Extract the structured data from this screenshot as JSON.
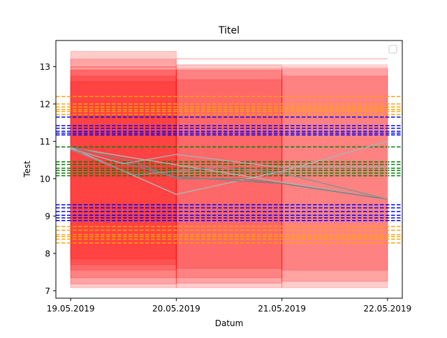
{
  "chart_data": {
    "type": "line",
    "title": "Titel",
    "xlabel": "Datum",
    "ylabel": "Test",
    "x_categories": [
      "19.05.2019",
      "20.05.2019",
      "21.05.2019",
      "22.05.2019"
    ],
    "xlim": [
      -0.14,
      3.14
    ],
    "ylim": [
      6.8,
      13.7
    ],
    "y_ticks": [
      7,
      8,
      9,
      10,
      11,
      12,
      13
    ],
    "legend": {
      "placement": "top-right",
      "entries": []
    },
    "bands": [
      {
        "x0": 0,
        "x1": 1,
        "y0": 7.08,
        "y1": 13.41,
        "color": "#ff0000",
        "opacity": 0.2
      },
      {
        "x0": 0,
        "x1": 1,
        "y0": 7.18,
        "y1": 13.2,
        "color": "#ff0000",
        "opacity": 0.2
      },
      {
        "x0": 0,
        "x1": 1,
        "y0": 7.35,
        "y1": 13.0,
        "color": "#ff0000",
        "opacity": 0.2
      },
      {
        "x0": 0,
        "x1": 1,
        "y0": 7.55,
        "y1": 12.9,
        "color": "#ff0000",
        "opacity": 0.2
      },
      {
        "x0": 0,
        "x1": 1,
        "y0": 7.7,
        "y1": 12.75,
        "color": "#ff0000",
        "opacity": 0.2
      },
      {
        "x0": 0,
        "x1": 1,
        "y0": 7.85,
        "y1": 12.6,
        "color": "#ff0000",
        "opacity": 0.2
      },
      {
        "x0": 1,
        "x1": 2,
        "y0": 7.08,
        "y1": 13.05,
        "color": "#ff0000",
        "opacity": 0.2
      },
      {
        "x0": 1,
        "x1": 2,
        "y0": 7.2,
        "y1": 12.95,
        "color": "#ff0000",
        "opacity": 0.2
      },
      {
        "x0": 1,
        "x1": 2,
        "y0": 7.35,
        "y1": 12.9,
        "color": "#ff0000",
        "opacity": 0.2
      },
      {
        "x0": 1,
        "x1": 2,
        "y0": 7.6,
        "y1": 12.65,
        "color": "#ff0000",
        "opacity": 0.2
      },
      {
        "x0": 2,
        "x1": 3,
        "y0": 7.08,
        "y1": 13.0,
        "color": "#ff0000",
        "opacity": 0.2
      },
      {
        "x0": 2,
        "x1": 3,
        "y0": 7.25,
        "y1": 12.95,
        "color": "#ff0000",
        "opacity": 0.2
      },
      {
        "x0": 2,
        "x1": 3,
        "y0": 7.55,
        "y1": 12.75,
        "color": "#ff0000",
        "opacity": 0.2
      }
    ],
    "faint_lines": [
      {
        "x0": 0,
        "x1": 3,
        "y": 13.21,
        "color": "#ffaaaa",
        "opacity": 0.8
      },
      {
        "x0": 0,
        "x1": 3,
        "y": 13.04,
        "color": "#ffaaaa",
        "opacity": 0.8
      },
      {
        "x0": 0,
        "x1": 3,
        "y": 12.95,
        "color": "#ffaaaa",
        "opacity": 0.8
      }
    ],
    "hlines": [
      {
        "y": 12.2,
        "color": "#ffa500"
      },
      {
        "y": 12.0,
        "color": "#ffa500"
      },
      {
        "y": 11.92,
        "color": "#ffa500"
      },
      {
        "y": 11.85,
        "color": "#ffa500"
      },
      {
        "y": 11.8,
        "color": "#ffa500"
      },
      {
        "y": 11.72,
        "color": "#ffa500"
      },
      {
        "y": 11.65,
        "color": "#0000ff"
      },
      {
        "y": 11.42,
        "color": "#0000ff"
      },
      {
        "y": 11.35,
        "color": "#0000ff"
      },
      {
        "y": 11.27,
        "color": "#0000ff"
      },
      {
        "y": 11.22,
        "color": "#0000ff"
      },
      {
        "y": 11.17,
        "color": "#0000ff"
      },
      {
        "y": 10.85,
        "color": "#008000"
      },
      {
        "y": 10.45,
        "color": "#008000"
      },
      {
        "y": 10.38,
        "color": "#008000"
      },
      {
        "y": 10.28,
        "color": "#008000"
      },
      {
        "y": 10.22,
        "color": "#008000"
      },
      {
        "y": 10.15,
        "color": "#008000"
      },
      {
        "y": 10.08,
        "color": "#008000"
      },
      {
        "y": 9.3,
        "color": "#0000ff"
      },
      {
        "y": 9.22,
        "color": "#0000ff"
      },
      {
        "y": 9.12,
        "color": "#0000ff"
      },
      {
        "y": 9.02,
        "color": "#0000ff"
      },
      {
        "y": 8.95,
        "color": "#0000ff"
      },
      {
        "y": 8.88,
        "color": "#0000ff"
      },
      {
        "y": 8.72,
        "color": "#ffa500"
      },
      {
        "y": 8.62,
        "color": "#ffa500"
      },
      {
        "y": 8.5,
        "color": "#ffa500"
      },
      {
        "y": 8.45,
        "color": "#ffa500"
      },
      {
        "y": 8.38,
        "color": "#ffa500"
      },
      {
        "y": 8.28,
        "color": "#ffa500"
      }
    ],
    "series": [
      {
        "x": [
          0,
          1,
          2,
          3,
          3,
          0
        ],
        "y": [
          10.83,
          9.58,
          10.2,
          11.0,
          9.45,
          10.83
        ],
        "color": "#b0b0b0",
        "width": 1.5
      },
      {
        "x": [
          0,
          1,
          2,
          3
        ],
        "y": [
          10.78,
          10.05,
          9.87,
          9.45
        ],
        "color": "#808080",
        "width": 1.5
      },
      {
        "x": [
          0,
          0.5,
          1,
          2,
          3
        ],
        "y": [
          10.8,
          10.4,
          10.65,
          10.3,
          10.3
        ],
        "color": "#aaaaaa",
        "width": 1.5
      },
      {
        "x": [
          0,
          0.6,
          1,
          1.6,
          2,
          3
        ],
        "y": [
          10.85,
          10.45,
          10.0,
          10.0,
          9.87,
          9.45
        ],
        "color": "#808080",
        "width": 1.5
      },
      {
        "x": [
          0,
          0.6,
          1.4,
          2,
          3
        ],
        "y": [
          10.78,
          10.1,
          10.3,
          10.15,
          9.45
        ],
        "color": "#909090",
        "width": 1.5
      }
    ]
  }
}
